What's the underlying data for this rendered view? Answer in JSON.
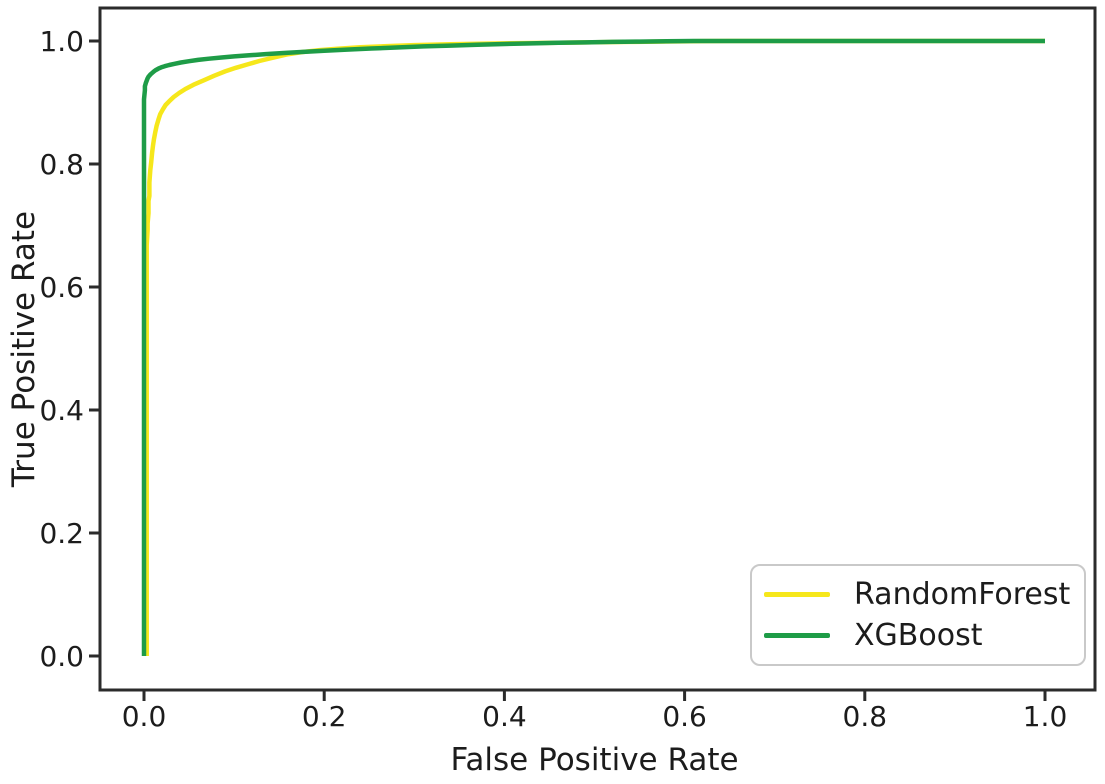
{
  "figure": {
    "description": "ROC curve comparison plot"
  },
  "colors": {
    "background": "#ffffff",
    "frame": "#2b2b2b",
    "text": "#1c1c1c",
    "legend_border": "#c9c9c9",
    "randomforest": "#f6e71b",
    "xgboost": "#1e9c47"
  },
  "legend": {
    "entries": [
      {
        "label": "RandomForest",
        "color": "#f6e71b"
      },
      {
        "label": "XGBoost",
        "color": "#1e9c47"
      }
    ]
  },
  "chart_data": {
    "type": "line",
    "title": "",
    "xlabel": "False Positive Rate",
    "ylabel": "True Positive Rate",
    "xlim": [
      -0.05,
      1.05
    ],
    "ylim": [
      -0.05,
      1.05
    ],
    "grid": false,
    "legend_position": "lower right",
    "x_ticks": {
      "values": [
        0.0,
        0.2,
        0.4,
        0.6,
        0.8,
        1.0
      ],
      "labels": [
        "0.0",
        "0.2",
        "0.4",
        "0.6",
        "0.8",
        "1.0"
      ]
    },
    "y_ticks": {
      "values": [
        0.0,
        0.2,
        0.4,
        0.6,
        0.8,
        1.0
      ],
      "labels": [
        "0.0",
        "0.2",
        "0.4",
        "0.6",
        "0.8",
        "1.0"
      ]
    },
    "series": [
      {
        "name": "RandomForest",
        "color": "#f6e71b",
        "points": [
          [
            0.003,
            0.0
          ],
          [
            0.003,
            0.668
          ],
          [
            0.004,
            0.693
          ],
          [
            0.004,
            0.703
          ],
          [
            0.005,
            0.72
          ],
          [
            0.005,
            0.74
          ],
          [
            0.006,
            0.748
          ],
          [
            0.006,
            0.77
          ],
          [
            0.007,
            0.79
          ],
          [
            0.008,
            0.803
          ],
          [
            0.009,
            0.818
          ],
          [
            0.01,
            0.83
          ],
          [
            0.011,
            0.84
          ],
          [
            0.0125,
            0.852
          ],
          [
            0.014,
            0.862
          ],
          [
            0.016,
            0.872
          ],
          [
            0.018,
            0.881
          ],
          [
            0.021,
            0.889
          ],
          [
            0.024,
            0.896
          ],
          [
            0.028,
            0.902
          ],
          [
            0.033,
            0.909
          ],
          [
            0.039,
            0.9155
          ],
          [
            0.046,
            0.922
          ],
          [
            0.055,
            0.929
          ],
          [
            0.066,
            0.936
          ],
          [
            0.078,
            0.9435
          ],
          [
            0.09,
            0.9505
          ],
          [
            0.102,
            0.9565
          ],
          [
            0.115,
            0.962
          ],
          [
            0.128,
            0.9675
          ],
          [
            0.142,
            0.9725
          ],
          [
            0.158,
            0.978
          ],
          [
            0.175,
            0.982
          ],
          [
            0.195,
            0.9852
          ],
          [
            0.215,
            0.9875
          ],
          [
            0.24,
            0.9897
          ],
          [
            0.27,
            0.9917
          ],
          [
            0.3,
            0.9933
          ],
          [
            0.34,
            0.9948
          ],
          [
            0.38,
            0.9958
          ],
          [
            0.42,
            0.9966
          ],
          [
            0.46,
            0.9972
          ],
          [
            0.5,
            0.9979
          ],
          [
            0.54,
            0.9986
          ],
          [
            0.58,
            0.9992
          ],
          [
            0.62,
            0.9998
          ],
          [
            0.65,
            1.0
          ],
          [
            1.0,
            1.0
          ]
        ]
      },
      {
        "name": "XGBoost",
        "color": "#1e9c47",
        "points": [
          [
            0.0,
            0.0
          ],
          [
            0.0,
            0.905
          ],
          [
            0.001,
            0.92
          ],
          [
            0.001,
            0.9265
          ],
          [
            0.002,
            0.9315
          ],
          [
            0.003,
            0.9355
          ],
          [
            0.004,
            0.9393
          ],
          [
            0.005,
            0.942
          ],
          [
            0.007,
            0.9453
          ],
          [
            0.009,
            0.948
          ],
          [
            0.011,
            0.9505
          ],
          [
            0.013,
            0.9527
          ],
          [
            0.016,
            0.9551
          ],
          [
            0.019,
            0.957
          ],
          [
            0.023,
            0.959
          ],
          [
            0.028,
            0.961
          ],
          [
            0.034,
            0.963
          ],
          [
            0.041,
            0.965
          ],
          [
            0.05,
            0.9672
          ],
          [
            0.06,
            0.9693
          ],
          [
            0.072,
            0.9712
          ],
          [
            0.086,
            0.9732
          ],
          [
            0.1,
            0.975
          ],
          [
            0.117,
            0.9768
          ],
          [
            0.135,
            0.9787
          ],
          [
            0.155,
            0.9805
          ],
          [
            0.177,
            0.9823
          ],
          [
            0.2,
            0.9841
          ],
          [
            0.225,
            0.986
          ],
          [
            0.252,
            0.9878
          ],
          [
            0.28,
            0.9895
          ],
          [
            0.31,
            0.9912
          ],
          [
            0.34,
            0.9926
          ],
          [
            0.37,
            0.9939
          ],
          [
            0.4,
            0.9951
          ],
          [
            0.43,
            0.9961
          ],
          [
            0.46,
            0.997
          ],
          [
            0.49,
            0.9978
          ],
          [
            0.52,
            0.9985
          ],
          [
            0.55,
            0.9991
          ],
          [
            0.58,
            0.9996
          ],
          [
            0.61,
            1.0
          ],
          [
            1.0,
            1.0
          ]
        ]
      }
    ]
  }
}
